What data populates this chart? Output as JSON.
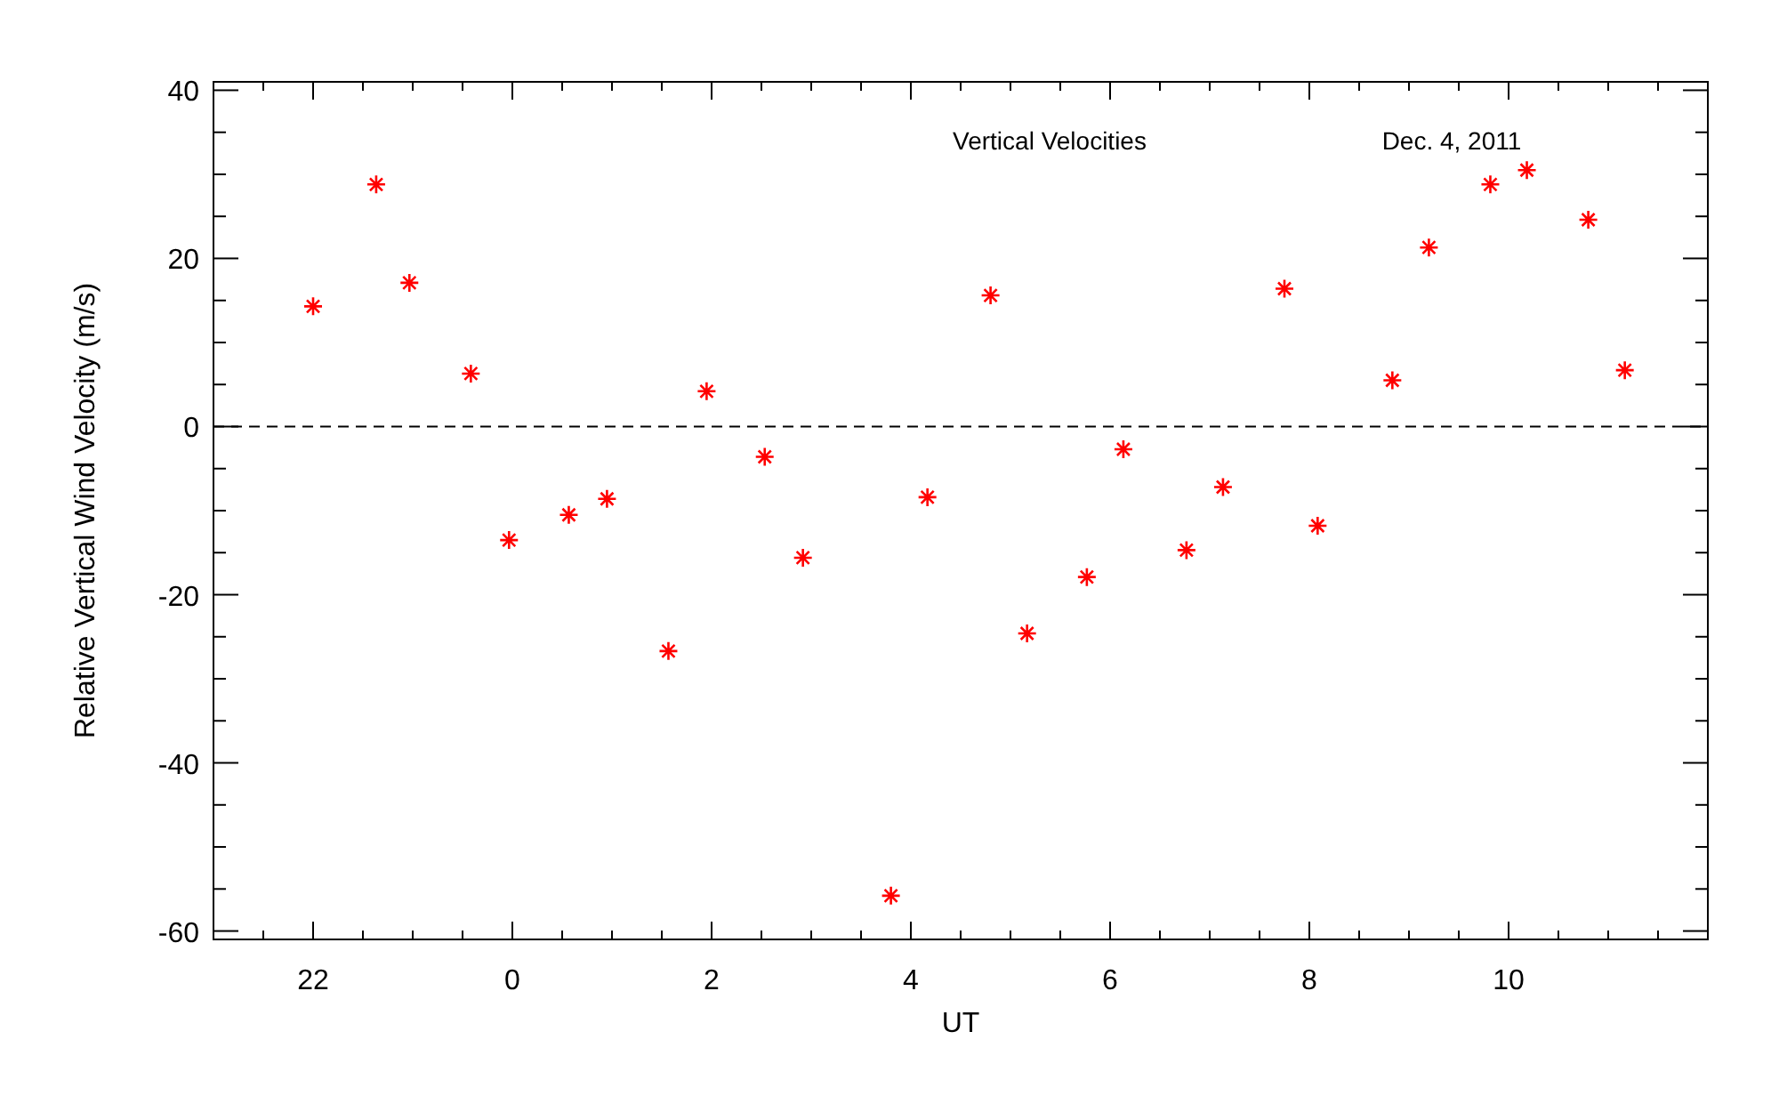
{
  "chart_data": {
    "type": "scatter",
    "xlabel": "UT",
    "ylabel": "Relative Vertical Wind Velocity (m/s)",
    "annotations": [
      "Vertical Velocities",
      "Dec. 4, 2011"
    ],
    "x": [
      "2011-12-03T22:00",
      "2011-12-03T22:38",
      "2011-12-03T22:58",
      "2011-12-03T23:35",
      "2011-12-03T23:58",
      "2011-12-04T00:34",
      "2011-12-04T00:57",
      "2011-12-04T01:34",
      "2011-12-04T01:57",
      "2011-12-04T02:32",
      "2011-12-04T02:55",
      "2011-12-04T03:48",
      "2011-12-04T04:10",
      "2011-12-04T04:48",
      "2011-12-04T05:10",
      "2011-12-04T05:46",
      "2011-12-04T06:08",
      "2011-12-04T06:46",
      "2011-12-04T07:08",
      "2011-12-04T07:45",
      "2011-12-04T08:05",
      "2011-12-04T08:50",
      "2011-12-04T09:12",
      "2011-12-04T09:49",
      "2011-12-04T10:11",
      "2011-12-04T10:48",
      "2011-12-04T11:10"
    ],
    "series": [
      {
        "color": "#ff0000",
        "values": [
          14.3,
          28.8,
          17.1,
          6.3,
          -13.5,
          -10.5,
          -8.6,
          -26.7,
          4.2,
          -3.6,
          -15.6,
          -55.8,
          -8.4,
          15.6,
          -24.6,
          -17.9,
          -2.7,
          -14.7,
          -7.2,
          16.4,
          -11.8,
          5.5,
          21.3,
          28.8,
          30.5,
          24.6,
          6.7
        ]
      }
    ],
    "marker": "cross",
    "xlim": [
      "2011-12-03T21:00",
      "2011-12-04T12:00"
    ],
    "xticks": [
      {
        "value": "2011-12-03T21:30",
        "label": null
      },
      {
        "value": "2011-12-03T22:00",
        "label": "22"
      },
      {
        "value": "2011-12-03T22:30",
        "label": null
      },
      {
        "value": "2011-12-03T23:00",
        "label": null
      },
      {
        "value": "2011-12-03T23:30",
        "label": null
      },
      {
        "value": "2011-12-04T00:00",
        "label": "0"
      },
      {
        "value": "2011-12-04T00:30",
        "label": null
      },
      {
        "value": "2011-12-04T01:00",
        "label": null
      },
      {
        "value": "2011-12-04T01:30",
        "label": null
      },
      {
        "value": "2011-12-04T02:00",
        "label": "2"
      },
      {
        "value": "2011-12-04T02:30",
        "label": null
      },
      {
        "value": "2011-12-04T03:00",
        "label": null
      },
      {
        "value": "2011-12-04T03:30",
        "label": null
      },
      {
        "value": "2011-12-04T04:00",
        "label": "4"
      },
      {
        "value": "2011-12-04T04:30",
        "label": null
      },
      {
        "value": "2011-12-04T05:00",
        "label": null
      },
      {
        "value": "2011-12-04T05:30",
        "label": null
      },
      {
        "value": "2011-12-04T06:00",
        "label": "6"
      },
      {
        "value": "2011-12-04T06:30",
        "label": null
      },
      {
        "value": "2011-12-04T07:00",
        "label": null
      },
      {
        "value": "2011-12-04T07:30",
        "label": null
      },
      {
        "value": "2011-12-04T08:00",
        "label": "8"
      },
      {
        "value": "2011-12-04T08:30",
        "label": null
      },
      {
        "value": "2011-12-04T09:00",
        "label": null
      },
      {
        "value": "2011-12-04T09:30",
        "label": null
      },
      {
        "value": "2011-12-04T10:00",
        "label": "10"
      },
      {
        "value": "2011-12-04T10:30",
        "label": null
      },
      {
        "value": "2011-12-04T11:00",
        "label": null
      },
      {
        "value": "2011-12-04T11:30",
        "label": null
      }
    ],
    "ylim": [
      -61,
      41
    ],
    "yticks": [
      -60,
      {
        "value": -55,
        "label": null
      },
      {
        "value": -50,
        "label": null
      },
      {
        "value": -45,
        "label": null
      },
      -40,
      {
        "value": -35,
        "label": null
      },
      {
        "value": -30,
        "label": null
      },
      {
        "value": -25,
        "label": null
      },
      -20,
      {
        "value": -15,
        "label": null
      },
      {
        "value": -10,
        "label": null
      },
      {
        "value": -5,
        "label": null
      },
      0,
      {
        "value": 5,
        "label": null
      },
      {
        "value": 10,
        "label": null
      },
      {
        "value": 15,
        "label": null
      },
      20,
      {
        "value": 25,
        "label": null
      },
      {
        "value": 30,
        "label": null
      },
      {
        "value": 35,
        "label": null
      },
      40
    ],
    "ref_lines": [
      {
        "axis": "y",
        "value": 0,
        "line_style": "dashed",
        "color": "#000000"
      }
    ]
  }
}
